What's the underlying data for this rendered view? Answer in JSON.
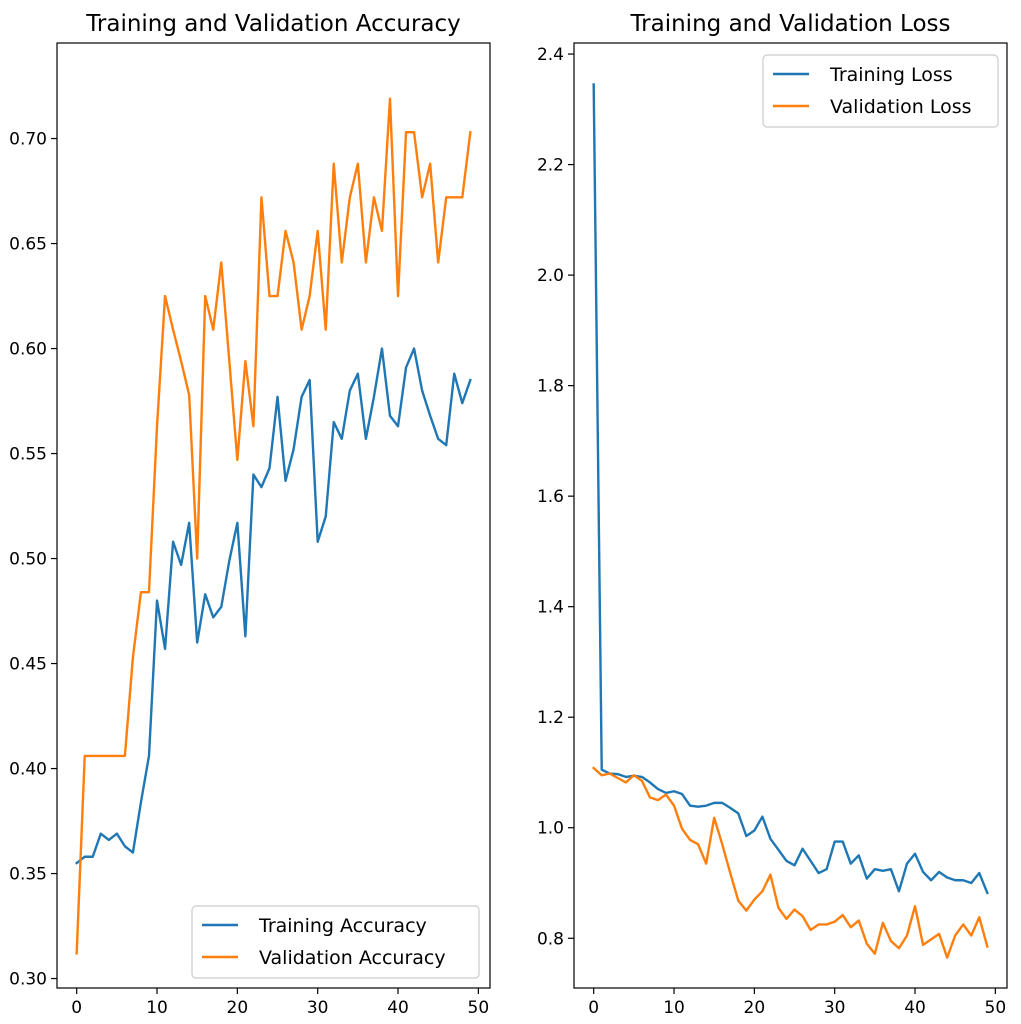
{
  "chart_data": [
    {
      "type": "line",
      "title": "Training and Validation Accuracy",
      "xlabel": "",
      "ylabel": "",
      "xlim": [
        -2.45,
        51.45
      ],
      "ylim": [
        0.2955,
        0.7455
      ],
      "xticks": [
        0,
        10,
        20,
        30,
        40,
        50
      ],
      "yticks": [
        0.3,
        0.35,
        0.4,
        0.45,
        0.5,
        0.55,
        0.6,
        0.65,
        0.7
      ],
      "ytick_labels": [
        "0.30",
        "0.35",
        "0.40",
        "0.45",
        "0.50",
        "0.55",
        "0.60",
        "0.65",
        "0.70"
      ],
      "grid": false,
      "legend_position": "lower-right",
      "series": [
        {
          "name": "Training Accuracy",
          "color": "#1f77b4",
          "x": [
            0,
            1,
            2,
            3,
            4,
            5,
            6,
            7,
            8,
            9,
            10,
            11,
            12,
            13,
            14,
            15,
            16,
            17,
            18,
            19,
            20,
            21,
            22,
            23,
            24,
            25,
            26,
            27,
            28,
            29,
            30,
            31,
            32,
            33,
            34,
            35,
            36,
            37,
            38,
            39,
            40,
            41,
            42,
            43,
            44,
            45,
            46,
            47,
            48,
            49
          ],
          "values": [
            0.355,
            0.358,
            0.358,
            0.369,
            0.366,
            0.369,
            0.363,
            0.36,
            0.384,
            0.406,
            0.48,
            0.457,
            0.508,
            0.497,
            0.517,
            0.46,
            0.483,
            0.472,
            0.477,
            0.499,
            0.517,
            0.463,
            0.54,
            0.534,
            0.543,
            0.577,
            0.537,
            0.552,
            0.577,
            0.585,
            0.508,
            0.52,
            0.565,
            0.557,
            0.58,
            0.588,
            0.557,
            0.577,
            0.6,
            0.568,
            0.563,
            0.591,
            0.6,
            0.58,
            0.568,
            0.557,
            0.554,
            0.588,
            0.574,
            0.585
          ]
        },
        {
          "name": "Validation Accuracy",
          "color": "#ff7f0e",
          "x": [
            0,
            1,
            2,
            3,
            4,
            5,
            6,
            7,
            8,
            9,
            10,
            11,
            12,
            13,
            14,
            15,
            16,
            17,
            18,
            19,
            20,
            21,
            22,
            23,
            24,
            25,
            26,
            27,
            28,
            29,
            30,
            31,
            32,
            33,
            34,
            35,
            36,
            37,
            38,
            39,
            40,
            41,
            42,
            43,
            44,
            45,
            46,
            47,
            48,
            49
          ],
          "values": [
            0.312,
            0.406,
            0.406,
            0.406,
            0.406,
            0.406,
            0.406,
            0.453,
            0.484,
            0.484,
            0.563,
            0.625,
            0.609,
            0.594,
            0.578,
            0.5,
            0.625,
            0.609,
            0.641,
            0.594,
            0.547,
            0.594,
            0.563,
            0.672,
            0.625,
            0.625,
            0.656,
            0.641,
            0.609,
            0.625,
            0.656,
            0.609,
            0.688,
            0.641,
            0.672,
            0.688,
            0.641,
            0.672,
            0.656,
            0.719,
            0.625,
            0.703,
            0.703,
            0.672,
            0.688,
            0.641,
            0.672,
            0.672,
            0.672,
            0.703
          ]
        }
      ]
    },
    {
      "type": "line",
      "title": "Training and Validation Loss",
      "xlabel": "",
      "ylabel": "",
      "xlim": [
        -2.45,
        51.45
      ],
      "ylim": [
        0.71,
        2.42
      ],
      "xticks": [
        0,
        10,
        20,
        30,
        40,
        50
      ],
      "yticks": [
        0.8,
        1.0,
        1.2,
        1.4,
        1.6,
        1.8,
        2.0,
        2.2,
        2.4
      ],
      "ytick_labels": [
        "0.8",
        "1.0",
        "1.2",
        "1.4",
        "1.6",
        "1.8",
        "2.0",
        "2.2",
        "2.4"
      ],
      "grid": false,
      "legend_position": "upper-right",
      "series": [
        {
          "name": "Training Loss",
          "color": "#1f77b4",
          "x": [
            0,
            1,
            2,
            3,
            4,
            5,
            6,
            7,
            8,
            9,
            10,
            11,
            12,
            13,
            14,
            15,
            16,
            17,
            18,
            19,
            20,
            21,
            22,
            23,
            24,
            25,
            26,
            27,
            28,
            29,
            30,
            31,
            32,
            33,
            34,
            35,
            36,
            37,
            38,
            39,
            40,
            41,
            42,
            43,
            44,
            45,
            46,
            47,
            48,
            49
          ],
          "values": [
            2.345,
            1.105,
            1.098,
            1.097,
            1.092,
            1.094,
            1.092,
            1.082,
            1.07,
            1.063,
            1.066,
            1.061,
            1.04,
            1.038,
            1.04,
            1.045,
            1.045,
            1.036,
            1.026,
            0.985,
            0.995,
            1.02,
            0.98,
            0.96,
            0.94,
            0.932,
            0.962,
            0.94,
            0.918,
            0.925,
            0.975,
            0.975,
            0.935,
            0.95,
            0.908,
            0.925,
            0.922,
            0.925,
            0.885,
            0.935,
            0.953,
            0.92,
            0.905,
            0.92,
            0.91,
            0.905,
            0.905,
            0.9,
            0.918,
            0.882
          ]
        },
        {
          "name": "Validation Loss",
          "color": "#ff7f0e",
          "x": [
            0,
            1,
            2,
            3,
            4,
            5,
            6,
            7,
            8,
            9,
            10,
            11,
            12,
            13,
            14,
            15,
            16,
            17,
            18,
            19,
            20,
            21,
            22,
            23,
            24,
            25,
            26,
            27,
            28,
            29,
            30,
            31,
            32,
            33,
            34,
            35,
            36,
            37,
            38,
            39,
            40,
            41,
            42,
            43,
            44,
            45,
            46,
            47,
            48,
            49
          ],
          "values": [
            1.108,
            1.095,
            1.098,
            1.09,
            1.082,
            1.095,
            1.085,
            1.055,
            1.05,
            1.06,
            1.04,
            0.998,
            0.978,
            0.97,
            0.935,
            1.018,
            0.97,
            0.918,
            0.868,
            0.85,
            0.87,
            0.885,
            0.915,
            0.855,
            0.835,
            0.852,
            0.84,
            0.815,
            0.825,
            0.825,
            0.83,
            0.842,
            0.82,
            0.832,
            0.79,
            0.772,
            0.828,
            0.795,
            0.782,
            0.805,
            0.858,
            0.788,
            0.798,
            0.808,
            0.765,
            0.805,
            0.825,
            0.805,
            0.838,
            0.785
          ]
        }
      ]
    }
  ]
}
